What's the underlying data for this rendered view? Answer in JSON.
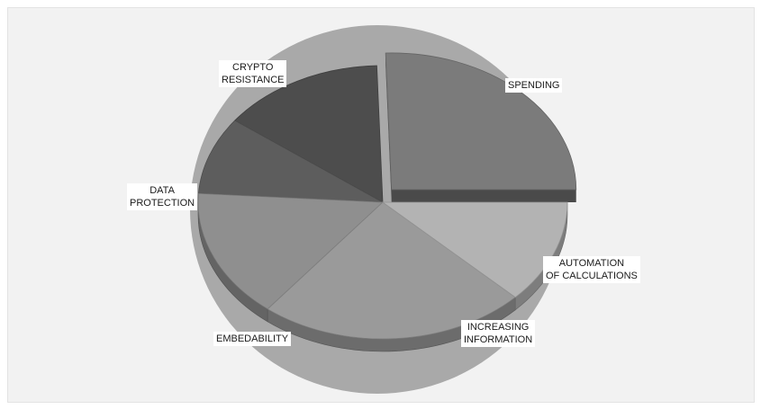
{
  "chart_data": {
    "type": "pie",
    "style": "3d-exploded",
    "title": "",
    "slices": [
      {
        "label": [
          "SPENDING"
        ],
        "value": 25,
        "color": "#7b7b7b",
        "exploded": true
      },
      {
        "label": [
          "AUTOMATION",
          "OF CALCULATIONS"
        ],
        "value": 14,
        "color": "#4d4d4d",
        "exploded": false
      },
      {
        "label": [
          "INCREASING",
          "INFORMATION"
        ],
        "value": 9,
        "color": "#5d5d5d",
        "exploded": false
      },
      {
        "label": [
          "EMBEDABILITY"
        ],
        "value": 15,
        "color": "#8f8f8f",
        "exploded": false
      },
      {
        "label": [
          "DATA",
          "PROTECTION"
        ],
        "value": 23,
        "color": "#9a9a9a",
        "exploded": false
      },
      {
        "label": [
          "CRYPTO",
          "RESISTANCE"
        ],
        "value": 12,
        "color": "#b3b3b3",
        "exploded": false
      }
    ],
    "background_disc_color": "#a9a9a9",
    "legend": "none"
  }
}
